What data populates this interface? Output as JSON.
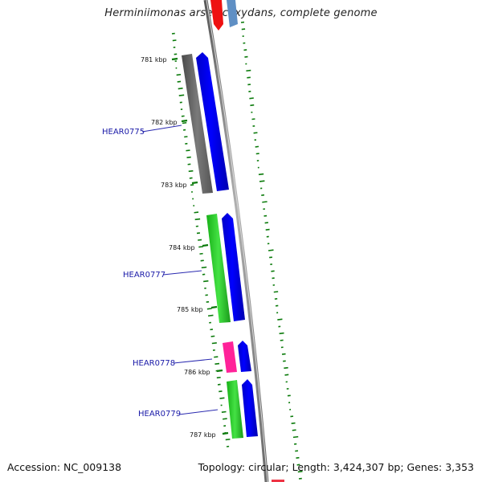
{
  "title": "Herminiimonas arsenicoxydans, complete genome",
  "accession_text": "Accession: NC_009138",
  "topology_text": "Topology: circular; Length: 3,424,307 bp; Genes: 3,353",
  "scale_labels": [
    "781 kbp",
    "782 kbp",
    "783 kbp",
    "784 kbp",
    "785 kbp",
    "786 kbp",
    "787 kbp"
  ],
  "gene_labels": [
    "HEAR0775",
    "HEAR0777",
    "HEAR0778",
    "HEAR0779"
  ],
  "colors": {
    "backbone": "#808080",
    "cds_forward": "#0000ee",
    "gene_gray": "#666666",
    "gene_green": "#22cc22",
    "gene_pink": "#ff2299",
    "gc_skew_dots": "#0a7a0a",
    "label_blue": "#1a1aa8",
    "top_red": "#ee0000",
    "top_steelblue": "#5a8ac0"
  }
}
